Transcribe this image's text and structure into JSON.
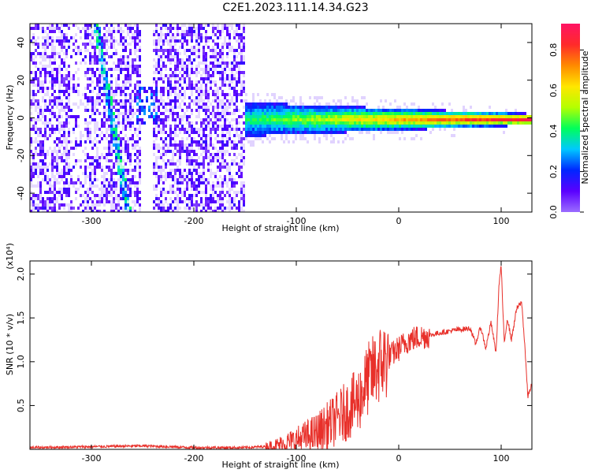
{
  "figure": {
    "title": "C2E1.2023.111.14.34.G23"
  },
  "chart_data": [
    {
      "type": "heatmap",
      "title": "C2E1.2023.111.14.34.G23",
      "xlabel": "Height of straight line (km)",
      "ylabel": "Frequency (Hz)",
      "xlim": [
        -360,
        130
      ],
      "ylim": [
        -50,
        50
      ],
      "x_ticks": [
        -300,
        -200,
        -100,
        0,
        100
      ],
      "y_ticks": [
        -40,
        -20,
        0,
        20,
        40
      ],
      "colorbar": {
        "label": "Normalized spectral amplitude",
        "range": [
          0.0,
          0.93
        ],
        "ticks": [
          0.0,
          0.2,
          0.4,
          0.6,
          0.8
        ],
        "colormap": [
          "#9b6cff",
          "#5a00ff",
          "#0026ff",
          "#00c8ff",
          "#00ff5a",
          "#b4ff00",
          "#ffe600",
          "#ff8a00",
          "#ff2a2a",
          "#ff1464"
        ]
      },
      "features": {
        "strong_band_center_hz": 0,
        "strong_band_start_km": -150,
        "drifting_trace": {
          "from": [
            -295,
            45
          ],
          "to": [
            -265,
            -50
          ]
        }
      }
    },
    {
      "type": "line",
      "xlabel": "Height of straight line (km)",
      "ylabel": "SNR (10 * v/v)",
      "y_scale_label": "(x10⁴)",
      "xlim": [
        -360,
        130
      ],
      "ylim": [
        0,
        2.15
      ],
      "x_ticks": [
        -300,
        -200,
        -100,
        0,
        100
      ],
      "y_ticks": [
        0.5,
        1.0,
        1.5,
        2.0
      ],
      "series": [
        {
          "color": "#e8302a",
          "x": [
            -360,
            -300,
            -250,
            -200,
            -150,
            -120,
            -100,
            -80,
            -60,
            -40,
            -30,
            -20,
            -10,
            0,
            10,
            20,
            30,
            40,
            50,
            60,
            70,
            75,
            80,
            85,
            90,
            95,
            98,
            100,
            103,
            106,
            110,
            115,
            120,
            123,
            126,
            130
          ],
          "y": [
            0.02,
            0.03,
            0.04,
            0.02,
            0.02,
            0.04,
            0.1,
            0.18,
            0.35,
            0.55,
            0.8,
            0.95,
            1.05,
            1.15,
            1.25,
            1.28,
            1.3,
            1.33,
            1.35,
            1.37,
            1.38,
            1.2,
            1.4,
            1.15,
            1.45,
            1.1,
            1.9,
            2.1,
            1.2,
            1.5,
            1.25,
            1.6,
            1.68,
            1.2,
            0.6,
            0.75
          ]
        }
      ]
    }
  ]
}
